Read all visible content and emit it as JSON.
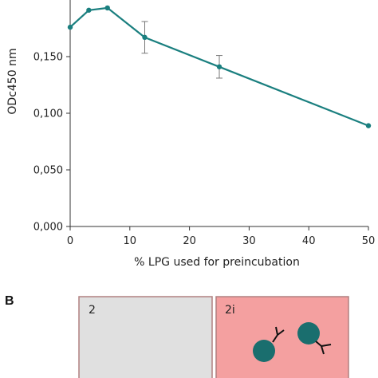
{
  "chart_data": {
    "type": "line",
    "xlabel": "% LPG used for preincubation",
    "ylabel": "ODc450 nm",
    "xlim": [
      0,
      50
    ],
    "ylim": [
      0,
      0.2
    ],
    "x_ticks": [
      "0",
      "10",
      "20",
      "30",
      "40",
      "50"
    ],
    "y_ticks": [
      "0,000",
      "0,050",
      "0,100",
      "0,150"
    ],
    "series": [
      {
        "color": "#1a7f7f",
        "x": [
          0,
          3.125,
          6.25,
          12.5,
          25,
          50
        ],
        "y": [
          0.176,
          0.191,
          0.193,
          0.167,
          0.141,
          0.089
        ],
        "error": [
          0,
          0,
          0,
          0.014,
          0.01,
          0
        ]
      }
    ],
    "grid": false
  },
  "panel_b": {
    "letter": "B",
    "panels": [
      {
        "label": "2",
        "fill": "#e0e0e0"
      },
      {
        "label": "2i",
        "fill": "#f4a0a0"
      }
    ],
    "cell_color": "#1a6e6e"
  }
}
